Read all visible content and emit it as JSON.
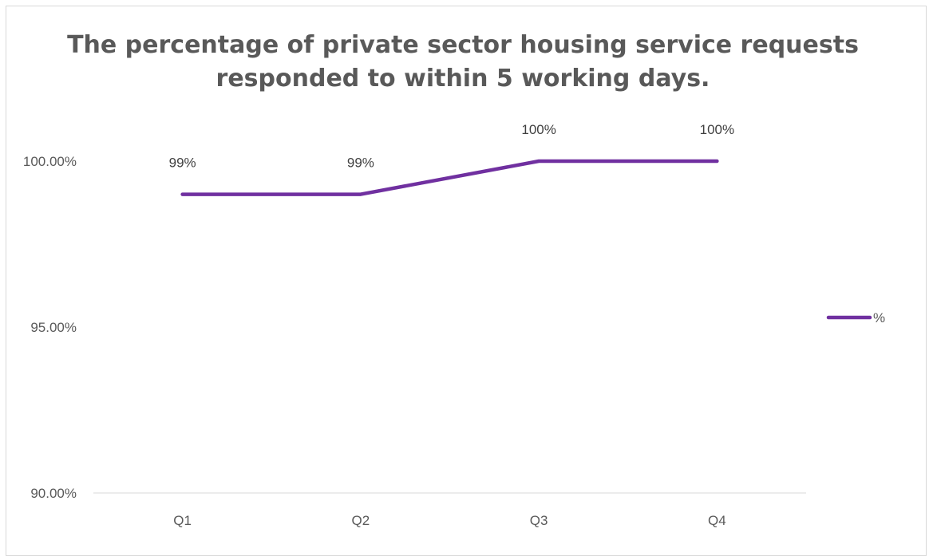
{
  "chart_data": {
    "type": "line",
    "title": "The percentage of private sector housing service requests responded to within 5 working days.",
    "categories": [
      "Q1",
      "Q2",
      "Q3",
      "Q4"
    ],
    "series": [
      {
        "name": "%",
        "values": [
          99,
          99,
          100,
          100
        ],
        "data_labels": [
          "99%",
          "99%",
          "100%",
          "100%"
        ],
        "color": "#7030a0"
      }
    ],
    "ylim": [
      90,
      100
    ],
    "y_ticks": [
      100,
      95,
      90
    ],
    "y_tick_labels": [
      "100.00%",
      "95.00%",
      "90.00%"
    ],
    "xlabel": "",
    "ylabel": "",
    "grid": false,
    "legend_position": "right"
  }
}
